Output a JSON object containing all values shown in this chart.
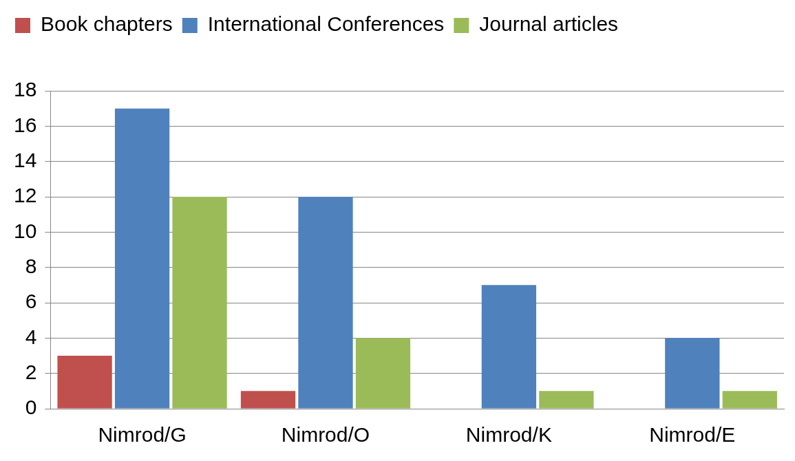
{
  "chart_data": {
    "type": "bar",
    "categories": [
      "Nimrod/G",
      "Nimrod/O",
      "Nimrod/K",
      "Nimrod/E"
    ],
    "series": [
      {
        "name": "Book chapters",
        "color": "#c0504d",
        "values": [
          3,
          1,
          0,
          0
        ]
      },
      {
        "name": "International Conferences",
        "color": "#4f81bd",
        "values": [
          17,
          12,
          7,
          4
        ]
      },
      {
        "name": "Journal articles",
        "color": "#9bbb59",
        "values": [
          12,
          4,
          1,
          1
        ]
      }
    ],
    "ylim": [
      0,
      18
    ],
    "yticks": [
      0,
      2,
      4,
      6,
      8,
      10,
      12,
      14,
      16,
      18
    ],
    "grid": "y",
    "legend": "top left"
  }
}
